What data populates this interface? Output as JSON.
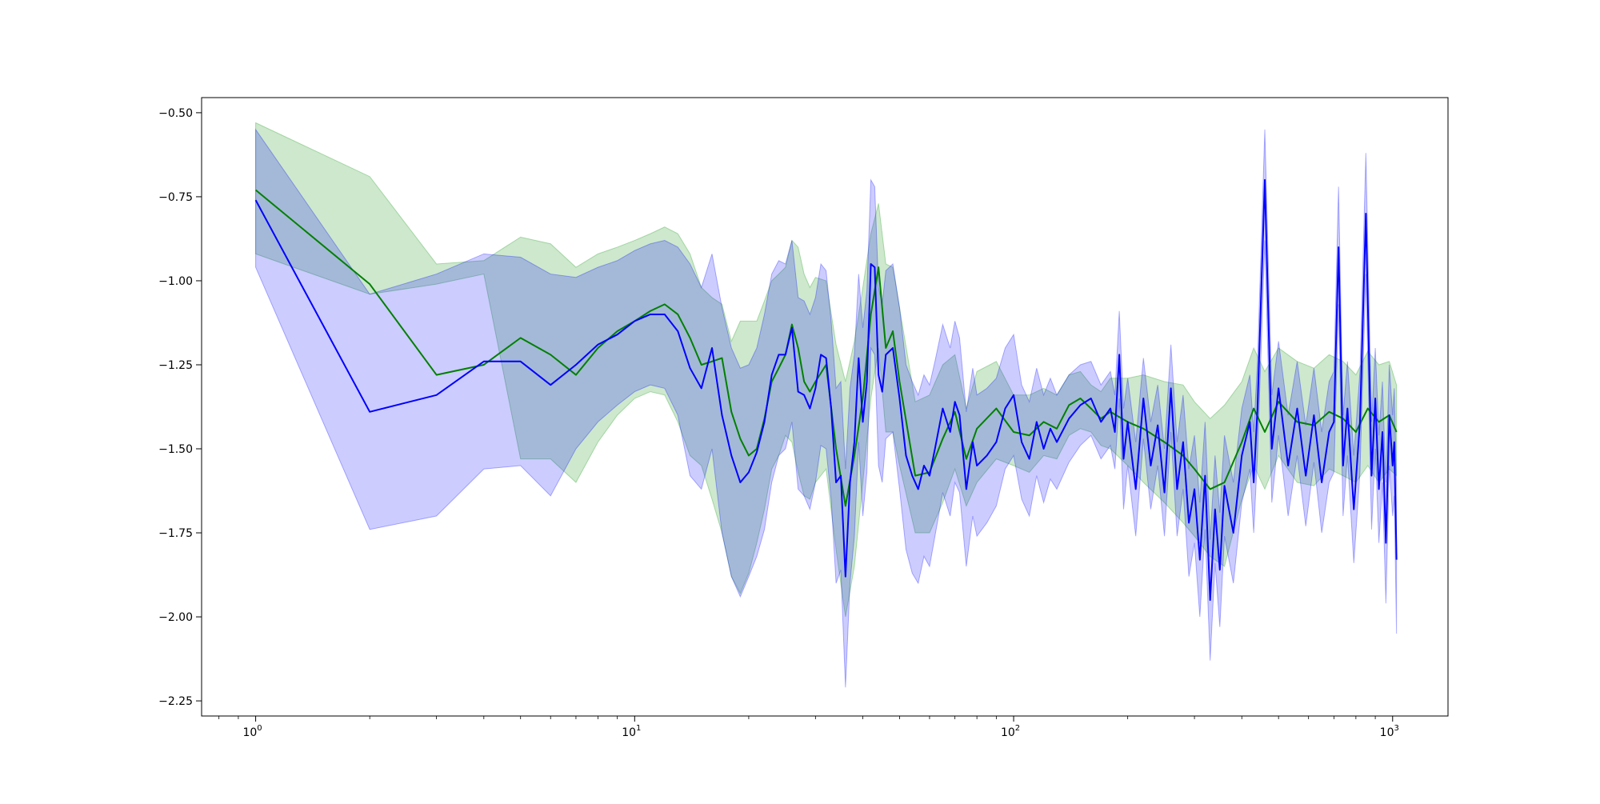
{
  "chart_data": {
    "type": "line",
    "title": "",
    "xlabel": "",
    "ylabel": "",
    "xscale": "log",
    "xlim": [
      0.72,
      1400
    ],
    "ylim": [
      -2.295,
      -0.455
    ],
    "grid": false,
    "legend": "none",
    "x_ticks": [
      {
        "value": 1,
        "base": "10",
        "exp": "0"
      },
      {
        "value": 10,
        "base": "10",
        "exp": "1"
      },
      {
        "value": 100,
        "base": "10",
        "exp": "2"
      },
      {
        "value": 1000,
        "base": "10",
        "exp": "3"
      }
    ],
    "y_ticks": [
      {
        "value": -0.5,
        "label": "−0.50"
      },
      {
        "value": -0.75,
        "label": "−0.75"
      },
      {
        "value": -1.0,
        "label": "−1.00"
      },
      {
        "value": -1.25,
        "label": "−1.25"
      },
      {
        "value": -1.5,
        "label": "−1.50"
      },
      {
        "value": -1.75,
        "label": "−1.75"
      },
      {
        "value": -2.0,
        "label": "−2.00"
      },
      {
        "value": -2.25,
        "label": "−2.25"
      }
    ],
    "series": [
      {
        "color": "#008000",
        "band_color": "#2ca02c",
        "band_opacity": 0.24,
        "x": [
          1,
          2,
          3,
          4,
          5,
          6,
          7,
          8,
          9,
          10,
          11,
          12,
          13,
          14,
          15,
          16,
          17,
          18,
          19,
          20,
          21,
          22,
          23,
          24,
          25,
          26,
          27,
          28,
          29,
          30,
          32,
          34,
          36,
          38,
          40,
          42,
          44,
          46,
          48,
          50,
          55,
          60,
          65,
          70,
          75,
          80,
          90,
          100,
          110,
          120,
          130,
          140,
          150,
          160,
          170,
          180,
          200,
          220,
          250,
          280,
          300,
          330,
          360,
          400,
          430,
          460,
          500,
          560,
          620,
          680,
          740,
          800,
          860,
          920,
          980,
          1024
        ],
        "y": [
          -0.73,
          -1.01,
          -1.28,
          -1.25,
          -1.17,
          -1.22,
          -1.28,
          -1.2,
          -1.15,
          -1.12,
          -1.09,
          -1.07,
          -1.1,
          -1.17,
          -1.25,
          -1.24,
          -1.23,
          -1.39,
          -1.47,
          -1.52,
          -1.5,
          -1.41,
          -1.3,
          -1.26,
          -1.22,
          -1.13,
          -1.2,
          -1.3,
          -1.33,
          -1.3,
          -1.25,
          -1.5,
          -1.67,
          -1.52,
          -1.35,
          -1.1,
          -0.96,
          -1.2,
          -1.15,
          -1.3,
          -1.58,
          -1.57,
          -1.47,
          -1.39,
          -1.53,
          -1.44,
          -1.38,
          -1.45,
          -1.46,
          -1.42,
          -1.44,
          -1.37,
          -1.35,
          -1.38,
          -1.41,
          -1.39,
          -1.42,
          -1.44,
          -1.48,
          -1.52,
          -1.56,
          -1.62,
          -1.6,
          -1.48,
          -1.38,
          -1.45,
          -1.36,
          -1.42,
          -1.43,
          -1.39,
          -1.41,
          -1.45,
          -1.38,
          -1.42,
          -1.4,
          -1.45
        ],
        "lower": [
          -0.92,
          -1.04,
          -1.01,
          -0.98,
          -1.53,
          -1.53,
          -1.6,
          -1.48,
          -1.4,
          -1.35,
          -1.33,
          -1.34,
          -1.42,
          -1.52,
          -1.55,
          -1.65,
          -1.75,
          -1.88,
          -1.93,
          -1.87,
          -1.78,
          -1.68,
          -1.56,
          -1.52,
          -1.46,
          -1.48,
          -1.57,
          -1.64,
          -1.65,
          -1.6,
          -1.56,
          -1.8,
          -2.0,
          -1.85,
          -1.6,
          -1.35,
          -1.2,
          -1.45,
          -1.45,
          -1.55,
          -1.75,
          -1.75,
          -1.66,
          -1.56,
          -1.67,
          -1.6,
          -1.53,
          -1.55,
          -1.57,
          -1.52,
          -1.53,
          -1.46,
          -1.44,
          -1.45,
          -1.49,
          -1.5,
          -1.55,
          -1.6,
          -1.66,
          -1.72,
          -1.76,
          -1.82,
          -1.85,
          -1.65,
          -1.55,
          -1.62,
          -1.52,
          -1.6,
          -1.61,
          -1.56,
          -1.58,
          -1.6,
          -1.55,
          -1.6,
          -1.56,
          -1.58
        ],
        "upper": [
          -0.53,
          -0.69,
          -0.95,
          -0.94,
          -0.87,
          -0.89,
          -0.96,
          -0.92,
          -0.9,
          -0.88,
          -0.86,
          -0.84,
          -0.86,
          -0.92,
          -1.02,
          -1.05,
          -1.07,
          -1.18,
          -1.12,
          -1.12,
          -1.12,
          -1.06,
          -1.0,
          -0.98,
          -0.96,
          -0.88,
          -0.9,
          -0.98,
          -1.02,
          -0.99,
          -1.0,
          -1.19,
          -1.3,
          -1.18,
          -1.02,
          -0.86,
          -0.77,
          -0.95,
          -0.96,
          -1.08,
          -1.36,
          -1.34,
          -1.25,
          -1.22,
          -1.38,
          -1.27,
          -1.24,
          -1.34,
          -1.34,
          -1.32,
          -1.34,
          -1.28,
          -1.27,
          -1.31,
          -1.33,
          -1.29,
          -1.29,
          -1.28,
          -1.3,
          -1.31,
          -1.36,
          -1.41,
          -1.37,
          -1.3,
          -1.2,
          -1.27,
          -1.2,
          -1.24,
          -1.26,
          -1.22,
          -1.24,
          -1.28,
          -1.21,
          -1.25,
          -1.24,
          -1.31
        ]
      },
      {
        "color": "#0000ff",
        "band_color": "#0000ff",
        "band_opacity": 0.2,
        "x": [
          1,
          2,
          3,
          4,
          5,
          6,
          7,
          8,
          9,
          10,
          11,
          12,
          13,
          14,
          15,
          16,
          17,
          18,
          19,
          20,
          21,
          22,
          23,
          24,
          25,
          26,
          27,
          28,
          29,
          30,
          31,
          32,
          33,
          34,
          35,
          36,
          37,
          38,
          39,
          40,
          41,
          42,
          43,
          44,
          45,
          46,
          48,
          50,
          52,
          54,
          56,
          58,
          60,
          62,
          65,
          68,
          70,
          72,
          75,
          78,
          80,
          85,
          90,
          95,
          100,
          105,
          110,
          115,
          120,
          125,
          130,
          140,
          150,
          160,
          170,
          180,
          185,
          190,
          195,
          200,
          210,
          220,
          230,
          240,
          250,
          260,
          270,
          280,
          290,
          300,
          310,
          320,
          330,
          340,
          350,
          360,
          380,
          400,
          420,
          430,
          440,
          460,
          480,
          500,
          530,
          560,
          590,
          620,
          650,
          680,
          700,
          720,
          740,
          760,
          790,
          820,
          850,
          880,
          900,
          920,
          940,
          960,
          980,
          1000,
          1010,
          1024
        ],
        "y": [
          -0.76,
          -1.39,
          -1.34,
          -1.24,
          -1.24,
          -1.31,
          -1.25,
          -1.19,
          -1.16,
          -1.12,
          -1.1,
          -1.1,
          -1.15,
          -1.26,
          -1.32,
          -1.2,
          -1.4,
          -1.52,
          -1.6,
          -1.57,
          -1.51,
          -1.42,
          -1.28,
          -1.22,
          -1.22,
          -1.14,
          -1.33,
          -1.34,
          -1.38,
          -1.32,
          -1.22,
          -1.23,
          -1.38,
          -1.6,
          -1.58,
          -1.88,
          -1.6,
          -1.48,
          -1.23,
          -1.42,
          -1.3,
          -0.95,
          -0.96,
          -1.28,
          -1.33,
          -1.22,
          -1.2,
          -1.35,
          -1.52,
          -1.58,
          -1.62,
          -1.55,
          -1.58,
          -1.5,
          -1.38,
          -1.45,
          -1.36,
          -1.4,
          -1.62,
          -1.48,
          -1.55,
          -1.52,
          -1.48,
          -1.38,
          -1.34,
          -1.48,
          -1.53,
          -1.42,
          -1.5,
          -1.44,
          -1.48,
          -1.41,
          -1.37,
          -1.35,
          -1.42,
          -1.38,
          -1.45,
          -1.22,
          -1.53,
          -1.42,
          -1.62,
          -1.35,
          -1.55,
          -1.43,
          -1.63,
          -1.32,
          -1.62,
          -1.48,
          -1.72,
          -1.62,
          -1.83,
          -1.58,
          -1.95,
          -1.68,
          -1.86,
          -1.61,
          -1.75,
          -1.52,
          -1.42,
          -1.6,
          -1.38,
          -0.7,
          -1.5,
          -1.32,
          -1.55,
          -1.38,
          -1.58,
          -1.4,
          -1.6,
          -1.45,
          -1.42,
          -0.9,
          -1.55,
          -1.38,
          -1.68,
          -1.42,
          -0.8,
          -1.58,
          -1.35,
          -1.62,
          -1.45,
          -1.78,
          -1.4,
          -1.55,
          -1.48,
          -1.83
        ]
      }
    ],
    "blue_band": {
      "x": [
        1,
        2,
        3,
        4,
        5,
        6,
        7,
        8,
        9,
        10,
        11,
        12,
        13,
        14,
        15,
        16,
        17,
        18,
        19,
        20,
        21,
        22,
        23,
        24,
        25,
        26,
        27,
        28,
        29,
        30,
        31,
        32,
        33,
        34,
        35,
        36,
        37,
        38,
        39,
        40,
        41,
        42,
        43,
        44,
        45,
        46,
        48,
        50,
        52,
        54,
        56,
        58,
        60,
        62,
        65,
        68,
        70,
        72,
        75,
        78,
        80,
        85,
        90,
        95,
        100,
        105,
        110,
        115,
        120,
        125,
        130,
        140,
        150,
        160,
        170,
        180,
        185,
        190,
        195,
        200,
        210,
        220,
        230,
        240,
        250,
        260,
        270,
        280,
        290,
        300,
        310,
        320,
        330,
        340,
        350,
        360,
        380,
        400,
        420,
        430,
        440,
        460,
        480,
        500,
        530,
        560,
        590,
        620,
        650,
        680,
        700,
        720,
        740,
        760,
        790,
        820,
        850,
        880,
        900,
        920,
        940,
        960,
        980,
        1000,
        1010,
        1024
      ],
      "lower": [
        -0.96,
        -1.74,
        -1.7,
        -1.56,
        -1.55,
        -1.64,
        -1.5,
        -1.42,
        -1.37,
        -1.33,
        -1.31,
        -1.32,
        -1.4,
        -1.58,
        -1.62,
        -1.5,
        -1.75,
        -1.88,
        -1.94,
        -1.88,
        -1.82,
        -1.74,
        -1.6,
        -1.52,
        -1.5,
        -1.42,
        -1.62,
        -1.64,
        -1.68,
        -1.6,
        -1.49,
        -1.5,
        -1.65,
        -1.9,
        -1.86,
        -2.21,
        -1.9,
        -1.76,
        -1.48,
        -1.7,
        -1.57,
        -1.2,
        -1.22,
        -1.55,
        -1.6,
        -1.47,
        -1.45,
        -1.62,
        -1.8,
        -1.87,
        -1.9,
        -1.82,
        -1.85,
        -1.76,
        -1.63,
        -1.7,
        -1.6,
        -1.63,
        -1.85,
        -1.7,
        -1.76,
        -1.72,
        -1.67,
        -1.56,
        -1.52,
        -1.65,
        -1.7,
        -1.58,
        -1.66,
        -1.59,
        -1.62,
        -1.54,
        -1.49,
        -1.46,
        -1.53,
        -1.49,
        -1.56,
        -1.35,
        -1.68,
        -1.55,
        -1.76,
        -1.47,
        -1.68,
        -1.55,
        -1.76,
        -1.45,
        -1.76,
        -1.62,
        -1.88,
        -1.78,
        -2.0,
        -1.74,
        -2.13,
        -1.84,
        -2.03,
        -1.76,
        -1.9,
        -1.66,
        -1.56,
        -1.75,
        -1.52,
        -0.88,
        -1.66,
        -1.46,
        -1.7,
        -1.52,
        -1.73,
        -1.54,
        -1.75,
        -1.6,
        -1.57,
        -1.07,
        -1.7,
        -1.52,
        -1.84,
        -1.57,
        -0.98,
        -1.74,
        -1.5,
        -1.78,
        -1.6,
        -1.96,
        -1.55,
        -1.7,
        -1.64,
        -2.05
      ],
      "upper": [
        -0.55,
        -1.04,
        -0.98,
        -0.92,
        -0.93,
        -0.98,
        -0.99,
        -0.96,
        -0.94,
        -0.91,
        -0.89,
        -0.88,
        -0.9,
        -0.95,
        -1.02,
        -0.92,
        -1.08,
        -1.2,
        -1.26,
        -1.25,
        -1.2,
        -1.1,
        -0.98,
        -0.94,
        -0.95,
        -0.88,
        -1.05,
        -1.06,
        -1.1,
        -1.05,
        -0.95,
        -0.97,
        -1.12,
        -1.32,
        -1.3,
        -1.56,
        -1.32,
        -1.22,
        -0.98,
        -1.14,
        -1.03,
        -0.7,
        -0.72,
        -1.02,
        -1.07,
        -0.97,
        -0.95,
        -1.08,
        -1.25,
        -1.3,
        -1.34,
        -1.28,
        -1.31,
        -1.24,
        -1.13,
        -1.2,
        -1.12,
        -1.17,
        -1.39,
        -1.26,
        -1.34,
        -1.32,
        -1.29,
        -1.2,
        -1.16,
        -1.31,
        -1.36,
        -1.26,
        -1.34,
        -1.29,
        -1.34,
        -1.28,
        -1.25,
        -1.24,
        -1.31,
        -1.27,
        -1.34,
        -1.09,
        -1.38,
        -1.29,
        -1.48,
        -1.23,
        -1.42,
        -1.31,
        -1.5,
        -1.19,
        -1.48,
        -1.34,
        -1.56,
        -1.46,
        -1.66,
        -1.42,
        -1.77,
        -1.52,
        -1.69,
        -1.46,
        -1.6,
        -1.38,
        -1.28,
        -1.45,
        -1.24,
        -0.55,
        -1.34,
        -1.18,
        -1.4,
        -1.24,
        -1.43,
        -1.26,
        -1.45,
        -1.3,
        -1.27,
        -0.72,
        -1.4,
        -1.24,
        -1.52,
        -1.27,
        -0.62,
        -1.42,
        -1.2,
        -1.46,
        -1.3,
        -1.6,
        -1.25,
        -1.4,
        -1.32,
        -1.61
      ]
    }
  }
}
